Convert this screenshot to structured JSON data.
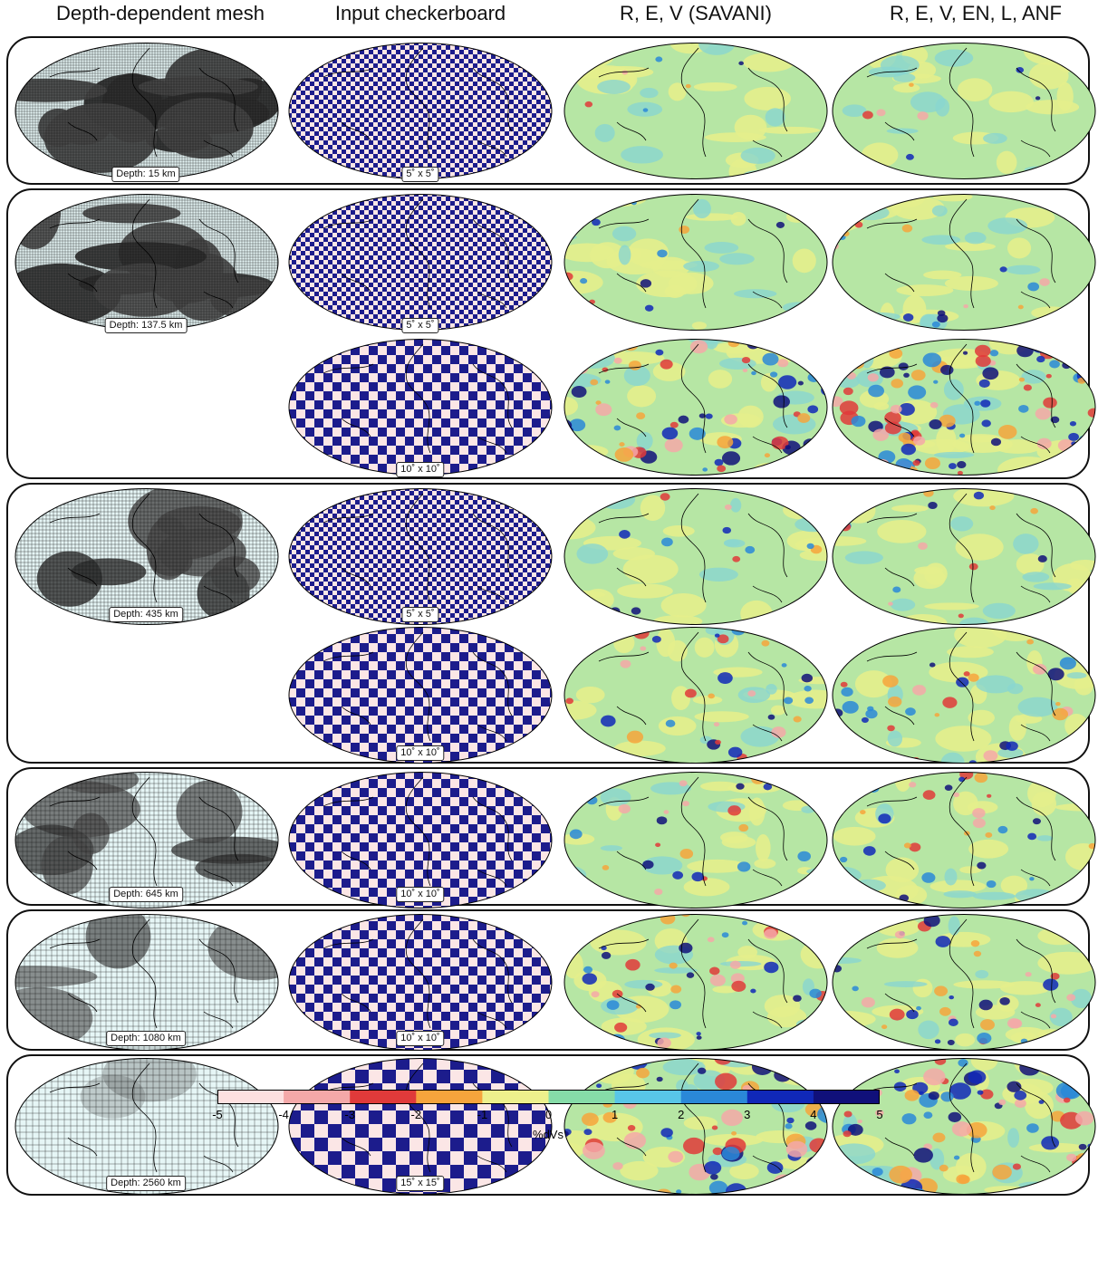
{
  "headers": [
    "Depth-dependent mesh",
    "Input checkerboard",
    "R, E, V (SAVANI)",
    "R, E, V, EN, L, ANF"
  ],
  "depth_labels": [
    "Depth: 15 km",
    "Depth: 137.5 km",
    "Depth: 435 km",
    "Depth: 645 km",
    "Depth: 1080 km",
    "Depth: 2560 km"
  ],
  "checker_labels": [
    "5˚ x 5˚",
    "5˚ x 5˚",
    "10˚ x 10˚",
    "5˚ x 5˚",
    "10˚ x 10˚",
    "10˚ x 10˚",
    "10˚ x 10˚",
    "15˚ x 15˚"
  ],
  "colorbar": {
    "ticks": [
      "-5",
      "-4",
      "-3",
      "-2",
      "-1",
      "0",
      "1",
      "2",
      "3",
      "4",
      "5"
    ],
    "colors": [
      "#fde0e0",
      "#f4a8a8",
      "#e03a3a",
      "#f6a43c",
      "#eef08c",
      "#86dca8",
      "#58c6e8",
      "#2a88d8",
      "#1028b8",
      "#10107a"
    ],
    "label": "%dVs"
  },
  "map_palette": {
    "checker_a": "#1c1c8c",
    "checker_b": "#fbe6e6",
    "mesh_light": "#e6f6f6",
    "mesh_dark": "#4a4a4a",
    "recovery_background": "#b6e6a4"
  }
}
